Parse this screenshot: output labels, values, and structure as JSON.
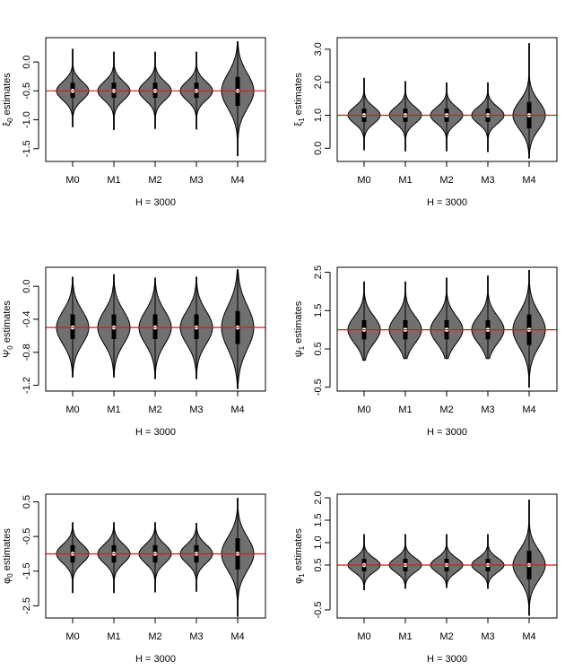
{
  "colors": {
    "violin_fill": "#707070",
    "reference_line": "#d7191c",
    "axis": "#000000",
    "median_dot": "#ffffff"
  },
  "chart_data": [
    {
      "type": "violin",
      "panel": "xi0",
      "ylabel_symbol": "ξ",
      "ylabel_sub": "0",
      "ylabel_rest": " estimates",
      "xlabel": "H = 3000",
      "categories": [
        "M0",
        "M1",
        "M2",
        "M3",
        "M4"
      ],
      "yticks": [
        -1.5,
        -1.0,
        -0.5,
        0.0
      ],
      "ytick_labels": [
        "-1.5",
        "-1.0",
        "-0.5",
        "0.0"
      ],
      "ylim": [
        -1.72,
        0.42
      ],
      "reference": -0.5,
      "violins": [
        {
          "min": -1.12,
          "max": 0.22,
          "q1": -0.62,
          "q3": -0.36,
          "median": -0.5,
          "sd": 0.16,
          "peak": 0.31
        },
        {
          "min": -1.17,
          "max": 0.17,
          "q1": -0.62,
          "q3": -0.36,
          "median": -0.5,
          "sd": 0.16,
          "peak": 0.31
        },
        {
          "min": -1.15,
          "max": 0.17,
          "q1": -0.62,
          "q3": -0.36,
          "median": -0.5,
          "sd": 0.16,
          "peak": 0.31
        },
        {
          "min": -1.16,
          "max": 0.17,
          "q1": -0.62,
          "q3": -0.36,
          "median": -0.5,
          "sd": 0.16,
          "peak": 0.31
        },
        {
          "min": -1.62,
          "max": 0.35,
          "q1": -0.76,
          "q3": -0.26,
          "median": -0.5,
          "sd": 0.3,
          "peak": 0.31
        }
      ]
    },
    {
      "type": "violin",
      "panel": "xi1",
      "ylabel_symbol": "ξ",
      "ylabel_sub": "1",
      "ylabel_rest": " estimates",
      "xlabel": "H = 3000",
      "categories": [
        "M0",
        "M1",
        "M2",
        "M3",
        "M4"
      ],
      "yticks": [
        0.0,
        1.0,
        2.0,
        3.0
      ],
      "ytick_labels": [
        "0.0",
        "1.0",
        "2.0",
        "3.0"
      ],
      "ylim": [
        -0.4,
        3.35
      ],
      "reference": 1.0,
      "violins": [
        {
          "min": -0.05,
          "max": 2.12,
          "q1": 0.8,
          "q3": 1.2,
          "median": 1.0,
          "sd": 0.25,
          "peak": 0.34
        },
        {
          "min": -0.08,
          "max": 2.02,
          "q1": 0.8,
          "q3": 1.2,
          "median": 1.0,
          "sd": 0.25,
          "peak": 0.34
        },
        {
          "min": -0.08,
          "max": 1.98,
          "q1": 0.8,
          "q3": 1.2,
          "median": 1.0,
          "sd": 0.25,
          "peak": 0.34
        },
        {
          "min": -0.1,
          "max": 1.98,
          "q1": 0.8,
          "q3": 1.2,
          "median": 1.0,
          "sd": 0.25,
          "peak": 0.34
        },
        {
          "min": -0.3,
          "max": 3.17,
          "q1": 0.6,
          "q3": 1.4,
          "median": 1.0,
          "sd": 0.42,
          "peak": 0.34
        }
      ]
    },
    {
      "type": "violin",
      "panel": "psi0",
      "ylabel_symbol": "Ψ",
      "ylabel_sub": "0",
      "ylabel_rest": " estimates",
      "xlabel": "H = 3000",
      "categories": [
        "M0",
        "M1",
        "M2",
        "M3",
        "M4"
      ],
      "yticks": [
        -1.2,
        -0.8,
        -0.4,
        0.0
      ],
      "ytick_labels": [
        "-1.2",
        "-0.8",
        "-0.4",
        "0.0"
      ],
      "ylim": [
        -1.27,
        0.23
      ],
      "reference": -0.5,
      "violins": [
        {
          "min": -1.1,
          "max": 0.11,
          "q1": -0.64,
          "q3": -0.34,
          "median": -0.5,
          "sd": 0.2,
          "peak": 0.36
        },
        {
          "min": -1.1,
          "max": 0.14,
          "q1": -0.64,
          "q3": -0.34,
          "median": -0.5,
          "sd": 0.2,
          "peak": 0.36
        },
        {
          "min": -1.12,
          "max": 0.1,
          "q1": -0.64,
          "q3": -0.34,
          "median": -0.5,
          "sd": 0.2,
          "peak": 0.36
        },
        {
          "min": -1.12,
          "max": 0.11,
          "q1": -0.64,
          "q3": -0.34,
          "median": -0.5,
          "sd": 0.2,
          "peak": 0.36
        },
        {
          "min": -1.24,
          "max": 0.2,
          "q1": -0.7,
          "q3": -0.3,
          "median": -0.5,
          "sd": 0.26,
          "peak": 0.36
        }
      ]
    },
    {
      "type": "violin",
      "panel": "psi1",
      "ylabel_symbol": "ψ",
      "ylabel_sub": "1",
      "ylabel_rest": " estimates",
      "xlabel": "H = 3000",
      "categories": [
        "M0",
        "M1",
        "M2",
        "M3",
        "M4"
      ],
      "yticks": [
        -0.5,
        0.5,
        1.5,
        2.5
      ],
      "ytick_labels": [
        "-0.5",
        "0.5",
        "1.5",
        "2.5"
      ],
      "ylim": [
        -0.6,
        2.63
      ],
      "reference": 1.0,
      "violins": [
        {
          "min": 0.2,
          "max": 2.25,
          "q1": 0.75,
          "q3": 1.25,
          "median": 1.0,
          "sd": 0.35,
          "peak": 0.34
        },
        {
          "min": 0.25,
          "max": 2.25,
          "q1": 0.75,
          "q3": 1.25,
          "median": 1.0,
          "sd": 0.35,
          "peak": 0.34
        },
        {
          "min": 0.25,
          "max": 2.35,
          "q1": 0.75,
          "q3": 1.25,
          "median": 1.0,
          "sd": 0.35,
          "peak": 0.34
        },
        {
          "min": 0.25,
          "max": 2.4,
          "q1": 0.75,
          "q3": 1.25,
          "median": 1.0,
          "sd": 0.35,
          "peak": 0.34
        },
        {
          "min": -0.5,
          "max": 2.55,
          "q1": 0.6,
          "q3": 1.4,
          "median": 1.0,
          "sd": 0.45,
          "peak": 0.34
        }
      ]
    },
    {
      "type": "violin",
      "panel": "phi0",
      "ylabel_symbol": "φ",
      "ylabel_sub": "0",
      "ylabel_rest": " estimates",
      "xlabel": "H = 3000",
      "categories": [
        "M0",
        "M1",
        "M2",
        "M3",
        "M4"
      ],
      "yticks": [
        -2.5,
        -1.5,
        -0.5,
        0.5
      ],
      "ytick_labels": [
        "-2.5",
        "-1.5",
        "-0.5",
        "0.5"
      ],
      "ylim": [
        -2.85,
        0.72
      ],
      "reference": -1.0,
      "violins": [
        {
          "min": -2.12,
          "max": -0.1,
          "q1": -1.25,
          "q3": -0.75,
          "median": -1.0,
          "sd": 0.27,
          "peak": 0.34
        },
        {
          "min": -2.12,
          "max": -0.1,
          "q1": -1.25,
          "q3": -0.75,
          "median": -1.0,
          "sd": 0.27,
          "peak": 0.34
        },
        {
          "min": -2.1,
          "max": -0.1,
          "q1": -1.25,
          "q3": -0.75,
          "median": -1.0,
          "sd": 0.27,
          "peak": 0.34
        },
        {
          "min": -2.08,
          "max": -0.12,
          "q1": -1.25,
          "q3": -0.75,
          "median": -1.0,
          "sd": 0.27,
          "peak": 0.34
        },
        {
          "min": -2.8,
          "max": 0.6,
          "q1": -1.45,
          "q3": -0.55,
          "median": -1.0,
          "sd": 0.48,
          "peak": 0.34
        }
      ]
    },
    {
      "type": "violin",
      "panel": "phi1",
      "ylabel_symbol": "φ",
      "ylabel_sub": "1",
      "ylabel_rest": " estimates",
      "xlabel": "H = 3000",
      "categories": [
        "M0",
        "M1",
        "M2",
        "M3",
        "M4"
      ],
      "yticks": [
        -0.5,
        0.5,
        1.0,
        1.5,
        2.0
      ],
      "ytick_labels": [
        "-0.5",
        "0.5",
        "1.0",
        "1.5",
        "2.0"
      ],
      "ylim": [
        -0.68,
        2.08
      ],
      "reference": 0.5,
      "violins": [
        {
          "min": -0.05,
          "max": 1.18,
          "q1": 0.36,
          "q3": 0.64,
          "median": 0.5,
          "sd": 0.16,
          "peak": 0.34
        },
        {
          "min": -0.02,
          "max": 1.18,
          "q1": 0.36,
          "q3": 0.64,
          "median": 0.5,
          "sd": 0.16,
          "peak": 0.34
        },
        {
          "min": 0.0,
          "max": 1.18,
          "q1": 0.36,
          "q3": 0.64,
          "median": 0.5,
          "sd": 0.16,
          "peak": 0.34
        },
        {
          "min": -0.02,
          "max": 1.18,
          "q1": 0.36,
          "q3": 0.64,
          "median": 0.5,
          "sd": 0.16,
          "peak": 0.34
        },
        {
          "min": -0.62,
          "max": 1.95,
          "q1": 0.18,
          "q3": 0.82,
          "median": 0.5,
          "sd": 0.33,
          "peak": 0.34
        }
      ]
    }
  ]
}
